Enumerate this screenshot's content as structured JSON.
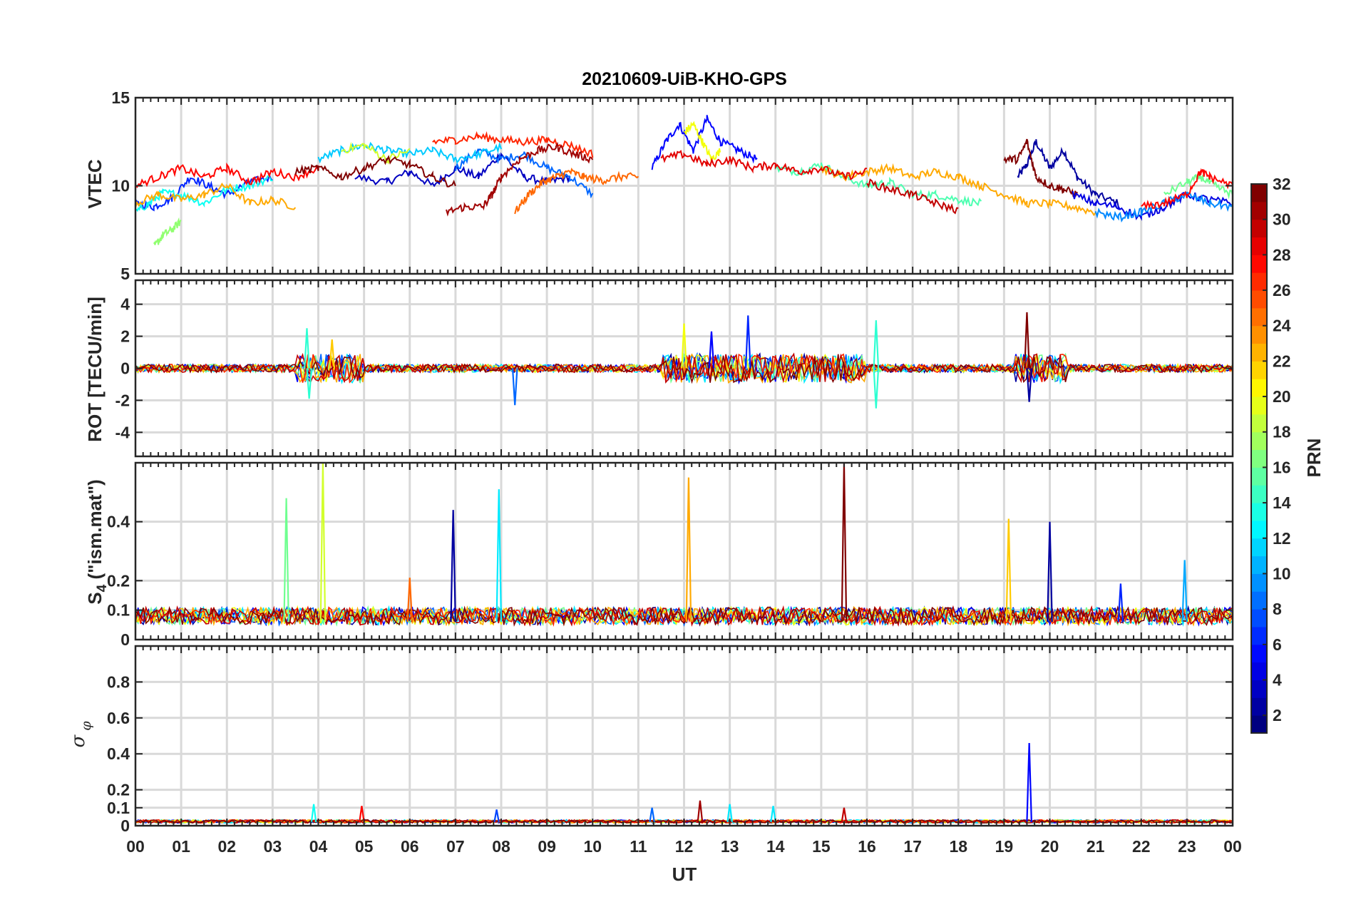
{
  "chart_data": {
    "type": "line",
    "title": "20210609-UiB-KHO-GPS",
    "xlabel": "UT",
    "x_tick_labels": [
      "00",
      "01",
      "02",
      "03",
      "04",
      "05",
      "06",
      "07",
      "08",
      "09",
      "10",
      "11",
      "12",
      "13",
      "14",
      "15",
      "16",
      "17",
      "18",
      "19",
      "20",
      "21",
      "22",
      "23",
      "00"
    ],
    "xlim": [
      0,
      24
    ],
    "grid": true,
    "colormap": "jet",
    "colorbar": {
      "label": "PRN",
      "range": [
        1,
        32
      ],
      "tick_labels": [
        "2",
        "4",
        "6",
        "8",
        "10",
        "12",
        "14",
        "16",
        "18",
        "20",
        "22",
        "24",
        "26",
        "28",
        "30",
        "32"
      ]
    },
    "panels": [
      {
        "ylabel": "VTEC",
        "ylim": [
          5,
          15
        ],
        "y_tick_labels": [
          "5",
          "10",
          "15"
        ],
        "series": [
          {
            "prn": 2,
            "x": [
              19.3,
              19.5,
              19.7,
              20.0,
              20.3,
              20.6,
              21.0,
              21.5
            ],
            "y": [
              10.5,
              11.2,
              12.5,
              11.0,
              12.0,
              10.5,
              9.5,
              9.0
            ]
          },
          {
            "prn": 3,
            "x": [
              4.8,
              5.5,
              6.0,
              6.5,
              7.0,
              7.5,
              8.0,
              8.5,
              9.0,
              9.5
            ],
            "y": [
              10.5,
              10.2,
              10.8,
              10.0,
              11.0,
              10.5,
              11.8,
              10.5,
              10.2,
              10.5
            ]
          },
          {
            "prn": 5,
            "x": [
              11.3,
              11.6,
              11.9,
              12.2,
              12.5,
              12.8,
              13.2,
              13.6
            ],
            "y": [
              11.0,
              12.5,
              13.5,
              12.0,
              13.8,
              12.5,
              12.0,
              11.5
            ]
          },
          {
            "prn": 6,
            "x": [
              0.0,
              0.4,
              0.8,
              1.2,
              1.6,
              2.0,
              2.5,
              3.0
            ],
            "y": [
              9.0,
              8.8,
              9.3,
              10.5,
              10.0,
              9.5,
              10.2,
              10.5
            ]
          },
          {
            "prn": 8,
            "x": [
              7.0,
              7.5,
              8.0,
              8.5,
              9.0,
              9.5,
              10.0
            ],
            "y": [
              11.0,
              12.0,
              11.5,
              11.8,
              11.0,
              10.5,
              9.5
            ]
          },
          {
            "prn": 11,
            "x": [
              4.0,
              4.5,
              5.0,
              5.5,
              6.0,
              6.5,
              7.0,
              7.5,
              8.0
            ],
            "y": [
              11.5,
              12.0,
              12.3,
              12.0,
              11.8,
              12.0,
              11.5,
              11.8,
              12.2
            ]
          },
          {
            "prn": 13,
            "x": [
              0.0,
              0.3,
              0.6,
              1.0,
              1.5,
              2.0,
              2.5,
              3.0
            ],
            "y": [
              8.5,
              9.0,
              9.6,
              9.5,
              9.0,
              9.8,
              10.0,
              10.5
            ]
          },
          {
            "prn": 15,
            "x": [
              14.0,
              14.5,
              15.0,
              15.5,
              16.0,
              16.5,
              17.0,
              17.5,
              18.0,
              18.5
            ],
            "y": [
              11.0,
              10.8,
              11.2,
              10.5,
              10.0,
              10.2,
              9.5,
              9.5,
              9.2,
              9.0
            ]
          },
          {
            "prn": 17,
            "x": [
              0.4,
              0.6,
              0.8,
              1.0
            ],
            "y": [
              6.5,
              7.2,
              7.5,
              8.0
            ]
          },
          {
            "prn": 19,
            "x": [
              4.5,
              5.0,
              5.5,
              6.0
            ],
            "y": [
              12.0,
              12.3,
              11.5,
              12.0
            ]
          },
          {
            "prn": 20,
            "x": [
              12.0,
              12.2,
              12.4,
              12.6,
              12.8
            ],
            "y": [
              13.0,
              13.5,
              12.5,
              11.5,
              12.0
            ]
          },
          {
            "prn": 23,
            "x": [
              0.0,
              0.5,
              1.0,
              1.5,
              2.0,
              2.5,
              3.0,
              3.5
            ],
            "y": [
              9.0,
              9.5,
              9.2,
              9.5,
              10.0,
              9.0,
              9.2,
              8.8
            ]
          },
          {
            "prn": 23,
            "x": [
              15.0,
              15.5,
              16.0,
              16.5,
              17.0,
              17.5,
              18.0,
              18.5,
              19.0,
              19.5,
              20.0,
              20.5,
              21.0
            ],
            "y": [
              11.0,
              10.5,
              10.8,
              11.0,
              10.5,
              10.8,
              10.5,
              10.0,
              9.5,
              9.0,
              9.0,
              8.8,
              8.5
            ]
          },
          {
            "prn": 25,
            "x": [
              8.3,
              8.6,
              8.9,
              9.2,
              9.5,
              9.8,
              10.2,
              10.6,
              11.0
            ],
            "y": [
              8.5,
              9.5,
              10.2,
              10.5,
              10.8,
              10.5,
              10.3,
              10.5,
              10.5
            ]
          },
          {
            "prn": 27,
            "x": [
              6.5,
              7.0,
              7.5,
              8.0,
              8.5,
              9.0,
              9.5,
              10.0
            ],
            "y": [
              12.5,
              12.6,
              12.8,
              12.6,
              12.5,
              12.6,
              12.3,
              11.8
            ]
          },
          {
            "prn": 28,
            "x": [
              0.0,
              0.5,
              1.0,
              1.5,
              2.0,
              2.5,
              3.0,
              3.5,
              4.0
            ],
            "y": [
              10.0,
              10.5,
              11.0,
              10.5,
              11.0,
              10.2,
              10.8,
              10.5,
              11.0
            ]
          },
          {
            "prn": 29,
            "x": [
              11.5,
              12.0,
              12.5,
              13.0,
              13.5,
              14.0,
              14.5,
              15.0,
              15.5,
              16.0
            ],
            "y": [
              11.5,
              11.8,
              11.2,
              11.5,
              11.0,
              11.2,
              10.8,
              11.0,
              10.5,
              10.8
            ]
          },
          {
            "prn": 31,
            "x": [
              6.8,
              7.2,
              7.6,
              7.8,
              8.0,
              8.4,
              8.8,
              9.2,
              9.6,
              10.0
            ],
            "y": [
              8.5,
              8.8,
              8.8,
              9.5,
              10.5,
              11.5,
              12.0,
              12.2,
              11.8,
              11.5
            ]
          },
          {
            "prn": 32,
            "x": [
              19.0,
              19.3,
              19.5,
              19.7,
              20.0,
              20.3,
              20.6
            ],
            "y": [
              11.5,
              11.5,
              12.5,
              10.5,
              10.0,
              9.8,
              9.5
            ]
          },
          {
            "prn": 32,
            "x": [
              3.5,
              4.0,
              4.5,
              5.0,
              5.5,
              6.0,
              6.5,
              7.0
            ],
            "y": [
              10.8,
              11.0,
              10.5,
              11.0,
              11.5,
              11.2,
              10.5,
              10.0
            ]
          },
          {
            "prn": 30,
            "x": [
              16.0,
              16.5,
              17.0,
              17.5,
              18.0
            ],
            "y": [
              10.2,
              9.8,
              9.5,
              9.0,
              8.6
            ]
          },
          {
            "prn": 4,
            "x": [
              20.5,
              21.0,
              21.5,
              22.0,
              22.5,
              23.0,
              23.5,
              24.0
            ],
            "y": [
              9.5,
              9.0,
              8.8,
              8.2,
              8.8,
              9.5,
              9.2,
              9.0
            ]
          },
          {
            "prn": 9,
            "x": [
              21.0,
              21.5,
              22.0,
              22.5,
              23.0,
              23.5,
              24.0
            ],
            "y": [
              8.5,
              8.2,
              8.5,
              9.0,
              9.5,
              9.0,
              8.8
            ]
          },
          {
            "prn": 16,
            "x": [
              22.5,
              23.0,
              23.3,
              23.6,
              24.0
            ],
            "y": [
              9.5,
              10.2,
              10.5,
              10.0,
              9.5
            ]
          },
          {
            "prn": 28,
            "x": [
              22.0,
              22.5,
              23.0,
              23.3,
              23.5,
              24.0
            ],
            "y": [
              8.8,
              9.0,
              9.5,
              10.8,
              10.5,
              10.0
            ]
          }
        ]
      },
      {
        "ylabel": "ROT [TECU/min]",
        "ylim": [
          -5.5,
          5.5
        ],
        "y_tick_labels": [
          "-4",
          "-2",
          "0",
          "2",
          "4"
        ],
        "spikes": [
          {
            "prn": 14,
            "x": 3.75,
            "y": 2.5
          },
          {
            "prn": 14,
            "x": 3.8,
            "y": -1.9
          },
          {
            "prn": 22,
            "x": 4.3,
            "y": 1.8
          },
          {
            "prn": 8,
            "x": 8.3,
            "y": -2.3
          },
          {
            "prn": 20,
            "x": 12.0,
            "y": 2.8
          },
          {
            "prn": 5,
            "x": 12.6,
            "y": 2.3
          },
          {
            "prn": 6,
            "x": 13.4,
            "y": 3.3
          },
          {
            "prn": 14,
            "x": 16.2,
            "y": 3.0
          },
          {
            "prn": 14,
            "x": 16.2,
            "y": -2.5
          },
          {
            "prn": 32,
            "x": 19.5,
            "y": 3.5
          },
          {
            "prn": 2,
            "x": 19.55,
            "y": -2.1
          }
        ]
      },
      {
        "ylabel": "S4 (\"ism.mat\")",
        "ylim": [
          0,
          0.6
        ],
        "y_tick_labels": [
          "0",
          "0.1",
          "0.2",
          "0.4"
        ],
        "spikes": [
          {
            "prn": 16,
            "x": 3.3,
            "y": 0.48
          },
          {
            "prn": 19,
            "x": 4.1,
            "y": 0.6
          },
          {
            "prn": 2,
            "x": 6.95,
            "y": 0.44
          },
          {
            "prn": 12,
            "x": 7.95,
            "y": 0.51
          },
          {
            "prn": 23,
            "x": 12.1,
            "y": 0.55
          },
          {
            "prn": 32,
            "x": 15.5,
            "y": 0.6
          },
          {
            "prn": 22,
            "x": 19.1,
            "y": 0.41
          },
          {
            "prn": 2,
            "x": 20.0,
            "y": 0.4
          },
          {
            "prn": 10,
            "x": 22.95,
            "y": 0.27
          },
          {
            "prn": 25,
            "x": 6.0,
            "y": 0.21
          },
          {
            "prn": 6,
            "x": 21.55,
            "y": 0.19
          }
        ]
      },
      {
        "ylabel": "σ φ",
        "ylim": [
          0,
          1
        ],
        "y_tick_labels": [
          "0",
          "0.1",
          "0.2",
          "0.4",
          "0.6",
          "0.8"
        ],
        "spikes": [
          {
            "prn": 13,
            "x": 3.9,
            "y": 0.12
          },
          {
            "prn": 28,
            "x": 4.95,
            "y": 0.11
          },
          {
            "prn": 7,
            "x": 7.9,
            "y": 0.09
          },
          {
            "prn": 8,
            "x": 11.3,
            "y": 0.1
          },
          {
            "prn": 31,
            "x": 12.35,
            "y": 0.14
          },
          {
            "prn": 12,
            "x": 13.0,
            "y": 0.12
          },
          {
            "prn": 12,
            "x": 13.95,
            "y": 0.11
          },
          {
            "prn": 5,
            "x": 19.55,
            "y": 0.46
          },
          {
            "prn": 30,
            "x": 15.5,
            "y": 0.1
          }
        ]
      }
    ]
  }
}
